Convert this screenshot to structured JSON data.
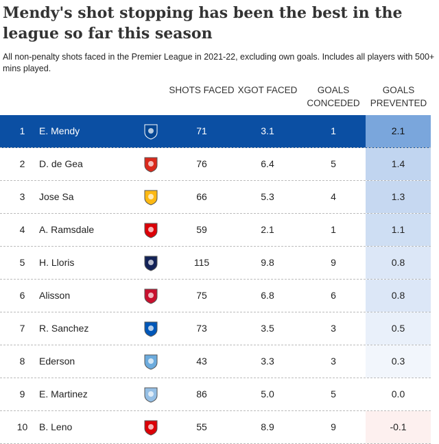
{
  "title": "Mendy's shot stopping has been the best in the league so far this season",
  "subtitle": "All non-penalty shots faced in the Premier League in 2021-22, excluding own goals. Includes all players with 500+ mins played.",
  "table": {
    "headers": [
      "SHOTS FACED",
      "XGOT FACED",
      "GOALS CONCEDED",
      "GOALS PREVENTED"
    ],
    "rows": [
      [
        "1",
        "E. Mendy",
        "71",
        "3.1",
        "1",
        "2.1"
      ],
      [
        "2",
        "D. de Gea",
        "76",
        "6.4",
        "5",
        "1.4"
      ],
      [
        "3",
        "Jose Sa",
        "66",
        "5.3",
        "4",
        "1.3"
      ],
      [
        "4",
        "A. Ramsdale",
        "59",
        "2.1",
        "1",
        "1.1"
      ],
      [
        "5",
        "H. Lloris",
        "115",
        "9.8",
        "9",
        "0.8"
      ],
      [
        "6",
        "Alisson",
        "75",
        "6.8",
        "6",
        "0.8"
      ],
      [
        "7",
        "R. Sanchez",
        "73",
        "3.5",
        "3",
        "0.5"
      ],
      [
        "8",
        "Ederson",
        "43",
        "3.3",
        "3",
        "0.3"
      ],
      [
        "9",
        "E. Martinez",
        "86",
        "5.0",
        "5",
        "0.0"
      ],
      [
        "10",
        "B. Leno",
        "55",
        "8.9",
        "9",
        "-0.1"
      ]
    ]
  }
}
